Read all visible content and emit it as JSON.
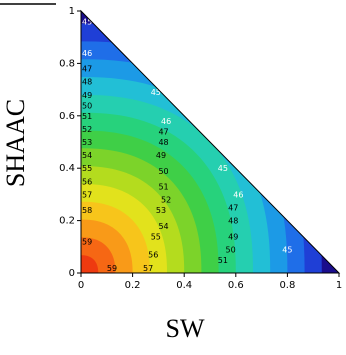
{
  "chart_data": {
    "type": "heatmap",
    "subtype": "ternary-contour",
    "title": "",
    "xlabel": "SW",
    "ylabel": "SHAAC",
    "xlim": [
      0,
      1
    ],
    "ylim": [
      0,
      1
    ],
    "x_ticks": [
      "0",
      "0.2",
      "0.4",
      "0.6",
      "0.8",
      "1"
    ],
    "y_ticks": [
      "0",
      "0.2",
      "0.4",
      "0.6",
      "0.8",
      "1"
    ],
    "grid": false,
    "legend": "none",
    "contour_levels": [
      45,
      46,
      47,
      48,
      49,
      50,
      51,
      52,
      53,
      54,
      55,
      56,
      57,
      58,
      59
    ],
    "level_colors": [
      "#1a0d8c",
      "#1f3fd6",
      "#1f6ee8",
      "#1c9ae6",
      "#22bfd6",
      "#25cfb0",
      "#27d27c",
      "#3fcf47",
      "#7cd32a",
      "#b4dc1e",
      "#e2e21c",
      "#f7c51b",
      "#f99a18",
      "#f66714",
      "#ee3a10"
    ],
    "contour_labels": [
      {
        "text": "45",
        "x": 0.29,
        "y": 0.69
      },
      {
        "text": "45",
        "x": 0.55,
        "y": 0.4
      },
      {
        "text": "45",
        "x": 0.8,
        "y": 0.09
      },
      {
        "text": "45",
        "x": 0.0,
        "y": 0.96
      },
      {
        "text": "46",
        "x": 0.0,
        "y": 0.84
      },
      {
        "text": "46",
        "x": 0.33,
        "y": 0.58
      },
      {
        "text": "46",
        "x": 0.61,
        "y": 0.3
      },
      {
        "text": "47",
        "x": 0.0,
        "y": 0.78
      },
      {
        "text": "47",
        "x": 0.32,
        "y": 0.54
      },
      {
        "text": "47",
        "x": 0.59,
        "y": 0.25
      },
      {
        "text": "48",
        "x": 0.0,
        "y": 0.73
      },
      {
        "text": "48",
        "x": 0.32,
        "y": 0.5
      },
      {
        "text": "48",
        "x": 0.59,
        "y": 0.2
      },
      {
        "text": "49",
        "x": 0.0,
        "y": 0.68
      },
      {
        "text": "49",
        "x": 0.31,
        "y": 0.45
      },
      {
        "text": "49",
        "x": 0.59,
        "y": 0.14
      },
      {
        "text": "50",
        "x": 0.0,
        "y": 0.64
      },
      {
        "text": "50",
        "x": 0.32,
        "y": 0.39
      },
      {
        "text": "50",
        "x": 0.58,
        "y": 0.09
      },
      {
        "text": "51",
        "x": 0.0,
        "y": 0.6
      },
      {
        "text": "51",
        "x": 0.32,
        "y": 0.33
      },
      {
        "text": "51",
        "x": 0.55,
        "y": 0.05
      },
      {
        "text": "52",
        "x": 0.0,
        "y": 0.55
      },
      {
        "text": "52",
        "x": 0.33,
        "y": 0.28
      },
      {
        "text": "53",
        "x": 0.0,
        "y": 0.5
      },
      {
        "text": "53",
        "x": 0.31,
        "y": 0.24
      },
      {
        "text": "54",
        "x": 0.0,
        "y": 0.45
      },
      {
        "text": "54",
        "x": 0.32,
        "y": 0.18
      },
      {
        "text": "55",
        "x": 0.0,
        "y": 0.4
      },
      {
        "text": "55",
        "x": 0.29,
        "y": 0.14
      },
      {
        "text": "56",
        "x": 0.0,
        "y": 0.35
      },
      {
        "text": "56",
        "x": 0.28,
        "y": 0.07
      },
      {
        "text": "57",
        "x": 0.0,
        "y": 0.3
      },
      {
        "text": "57",
        "x": 0.26,
        "y": 0.02
      },
      {
        "text": "58",
        "x": 0.0,
        "y": 0.24
      },
      {
        "text": "59",
        "x": 0.0,
        "y": 0.12
      },
      {
        "text": "59",
        "x": 0.12,
        "y": 0.02
      }
    ]
  }
}
